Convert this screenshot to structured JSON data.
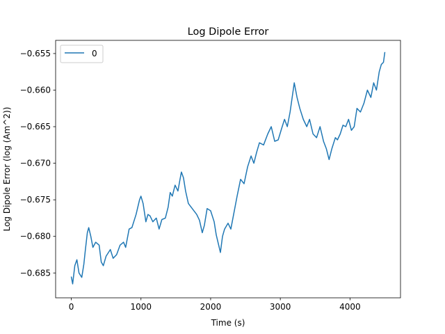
{
  "chart_data": {
    "type": "line",
    "title": "Log Dipole Error",
    "xlabel": "Time (s)",
    "ylabel": "Log Dipole Error (log (Am^2))",
    "xlim": [
      -225,
      4725
    ],
    "ylim": [
      -0.6884,
      -0.6532
    ],
    "xticks": [
      0,
      1000,
      2000,
      3000,
      4000
    ],
    "xtick_labels": [
      "0",
      "1000",
      "2000",
      "3000",
      "4000"
    ],
    "yticks": [
      -0.685,
      -0.68,
      -0.675,
      -0.67,
      -0.665,
      -0.66,
      -0.655
    ],
    "ytick_labels": [
      "−0.685",
      "−0.680",
      "−0.675",
      "−0.670",
      "−0.665",
      "−0.660",
      "−0.655"
    ],
    "grid": false,
    "legend": {
      "position": "top-left",
      "entries": [
        "0"
      ]
    },
    "colors": {
      "series": "#1f77b4",
      "axes": "#000000",
      "legend_border": "#cccccc"
    },
    "series": [
      {
        "name": "0",
        "x": [
          0,
          20,
          50,
          80,
          110,
          150,
          180,
          200,
          230,
          250,
          280,
          310,
          350,
          400,
          430,
          460,
          500,
          560,
          600,
          650,
          700,
          750,
          780,
          830,
          870,
          930,
          980,
          1000,
          1030,
          1070,
          1100,
          1130,
          1170,
          1220,
          1260,
          1300,
          1350,
          1390,
          1420,
          1450,
          1490,
          1530,
          1560,
          1580,
          1610,
          1640,
          1680,
          1720,
          1760,
          1800,
          1840,
          1880,
          1910,
          1950,
          2000,
          2050,
          2080,
          2110,
          2140,
          2170,
          2200,
          2250,
          2290,
          2330,
          2380,
          2430,
          2480,
          2530,
          2580,
          2620,
          2660,
          2700,
          2760,
          2820,
          2870,
          2920,
          2970,
          3020,
          3060,
          3100,
          3140,
          3170,
          3200,
          3240,
          3280,
          3330,
          3380,
          3420,
          3470,
          3520,
          3570,
          3620,
          3660,
          3700,
          3740,
          3790,
          3820,
          3860,
          3900,
          3940,
          3980,
          4020,
          4060,
          4100,
          4150,
          4200,
          4250,
          4300,
          4340,
          4380,
          4420,
          4450,
          4480,
          4500
        ],
        "y": [
          -0.6855,
          -0.6865,
          -0.684,
          -0.6832,
          -0.685,
          -0.6856,
          -0.6838,
          -0.682,
          -0.6795,
          -0.6788,
          -0.68,
          -0.6815,
          -0.6808,
          -0.6812,
          -0.6835,
          -0.684,
          -0.6827,
          -0.6818,
          -0.683,
          -0.6825,
          -0.6812,
          -0.6808,
          -0.6815,
          -0.679,
          -0.6788,
          -0.677,
          -0.675,
          -0.6745,
          -0.6755,
          -0.678,
          -0.677,
          -0.6772,
          -0.678,
          -0.6775,
          -0.679,
          -0.6777,
          -0.6775,
          -0.676,
          -0.674,
          -0.6745,
          -0.673,
          -0.6738,
          -0.6722,
          -0.6712,
          -0.672,
          -0.6738,
          -0.6755,
          -0.676,
          -0.6765,
          -0.677,
          -0.6778,
          -0.6795,
          -0.6785,
          -0.6762,
          -0.6765,
          -0.678,
          -0.6798,
          -0.681,
          -0.6822,
          -0.68,
          -0.679,
          -0.6782,
          -0.679,
          -0.677,
          -0.6745,
          -0.6722,
          -0.6728,
          -0.6705,
          -0.669,
          -0.67,
          -0.6685,
          -0.6672,
          -0.6675,
          -0.666,
          -0.665,
          -0.667,
          -0.6668,
          -0.6652,
          -0.664,
          -0.665,
          -0.663,
          -0.661,
          -0.659,
          -0.661,
          -0.6625,
          -0.664,
          -0.665,
          -0.664,
          -0.666,
          -0.6665,
          -0.665,
          -0.667,
          -0.668,
          -0.6695,
          -0.668,
          -0.6665,
          -0.6668,
          -0.666,
          -0.6648,
          -0.665,
          -0.664,
          -0.6655,
          -0.665,
          -0.6625,
          -0.663,
          -0.6618,
          -0.66,
          -0.661,
          -0.659,
          -0.66,
          -0.6575,
          -0.6565,
          -0.6562,
          -0.6548
        ]
      }
    ]
  }
}
